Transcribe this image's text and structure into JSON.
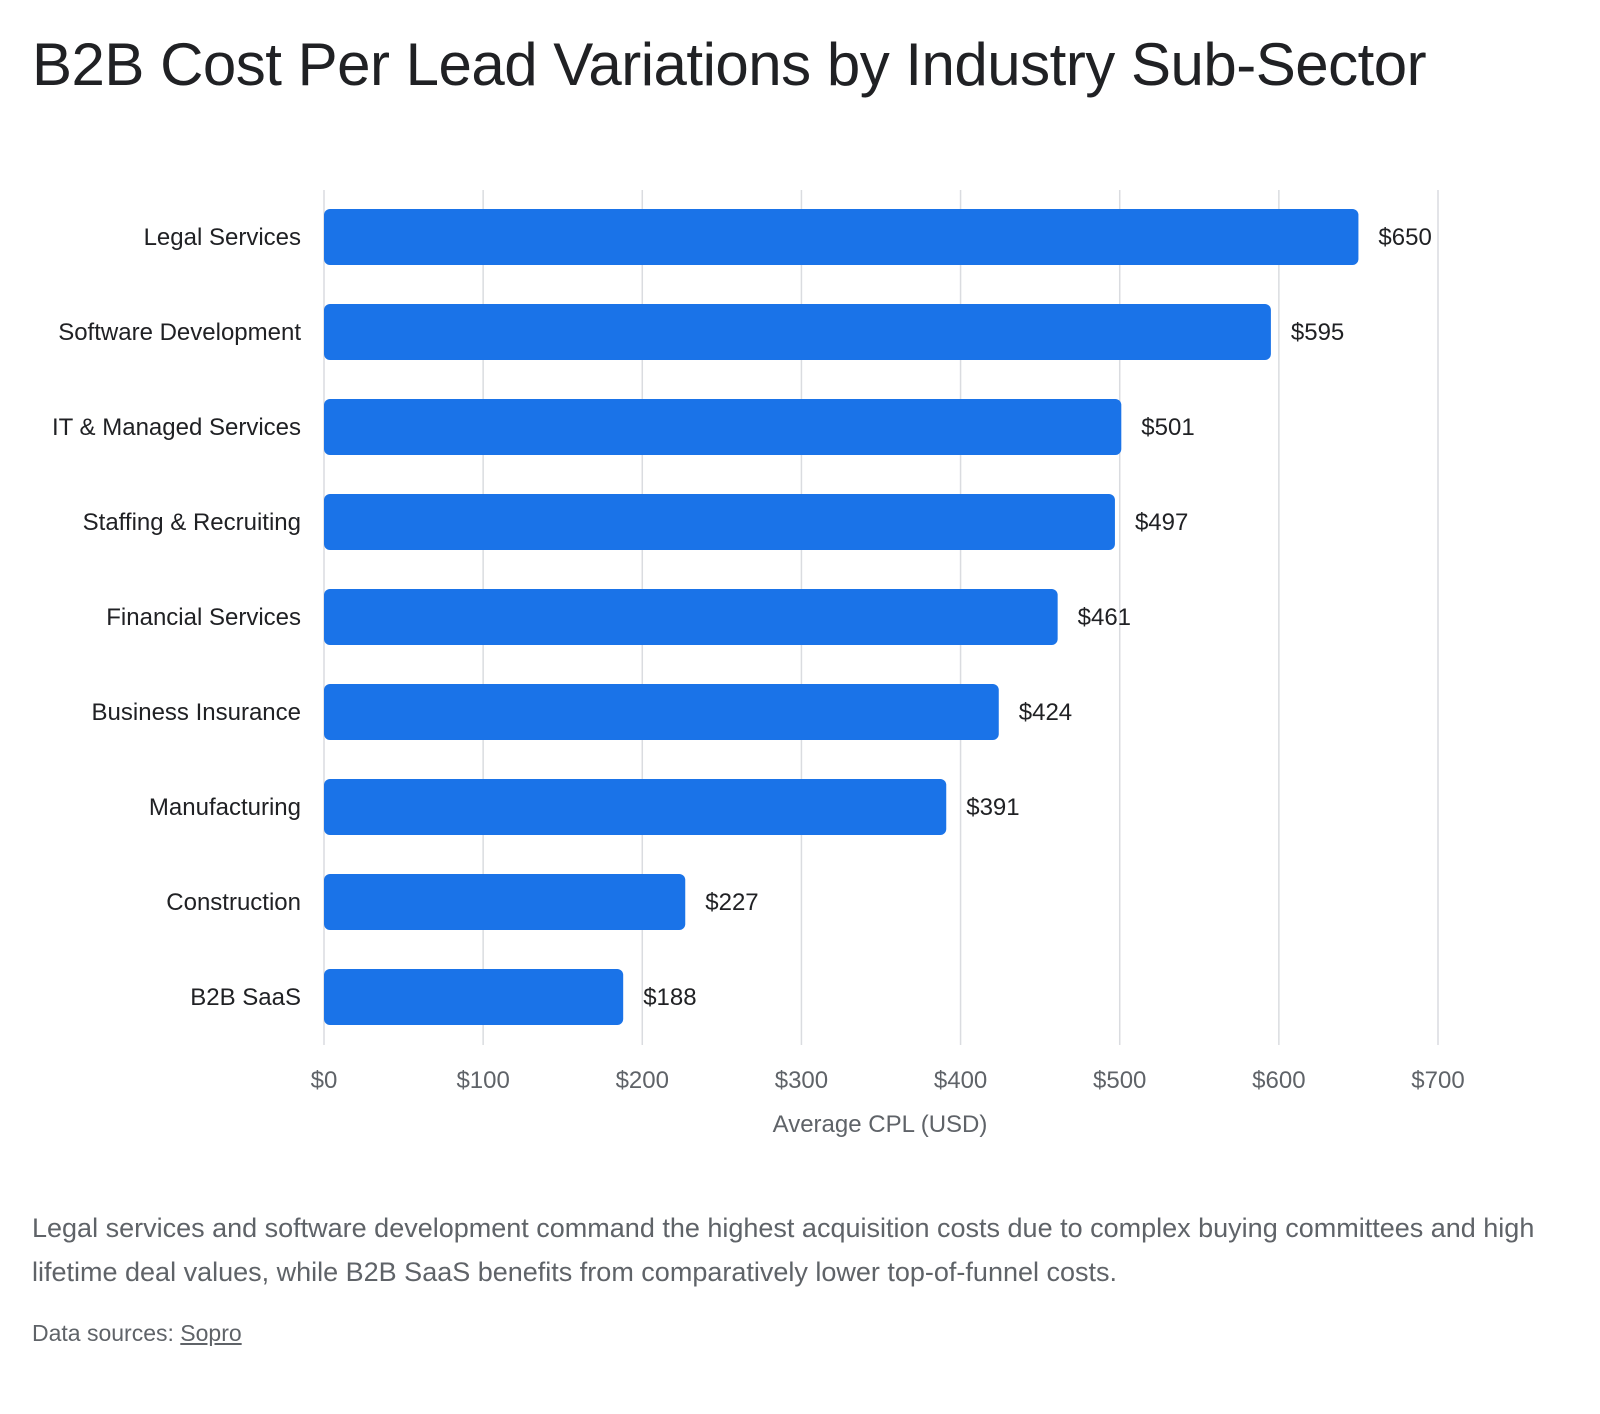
{
  "title": "B2B Cost Per Lead Variations by Industry Sub-Sector",
  "caption": "Legal services and software development command the highest acquisition costs due to complex buying committees and high lifetime deal values, while B2B SaaS benefits from comparatively lower top-of-funnel costs.",
  "sources": {
    "label": "Data sources:",
    "link_text": "Sopro"
  },
  "colors": {
    "bar": "#1a73e8",
    "grid": "#dadce0"
  },
  "chart_data": {
    "type": "bar",
    "orientation": "horizontal",
    "categories": [
      "Legal Services",
      "Software Development",
      "IT & Managed Services",
      "Staffing & Recruiting",
      "Financial Services",
      "Business Insurance",
      "Manufacturing",
      "Construction",
      "B2B SaaS"
    ],
    "values": [
      650,
      595,
      501,
      497,
      461,
      424,
      391,
      227,
      188
    ],
    "value_labels": [
      "$650",
      "$595",
      "$501",
      "$497",
      "$461",
      "$424",
      "$391",
      "$227",
      "$188"
    ],
    "xlabel": "Average CPL (USD)",
    "xlim": [
      0,
      700
    ],
    "xticks": [
      0,
      100,
      200,
      300,
      400,
      500,
      600,
      700
    ],
    "xtick_labels": [
      "$0",
      "$100",
      "$200",
      "$300",
      "$400",
      "$500",
      "$600",
      "$700"
    ],
    "grid": true,
    "legend": "none"
  }
}
